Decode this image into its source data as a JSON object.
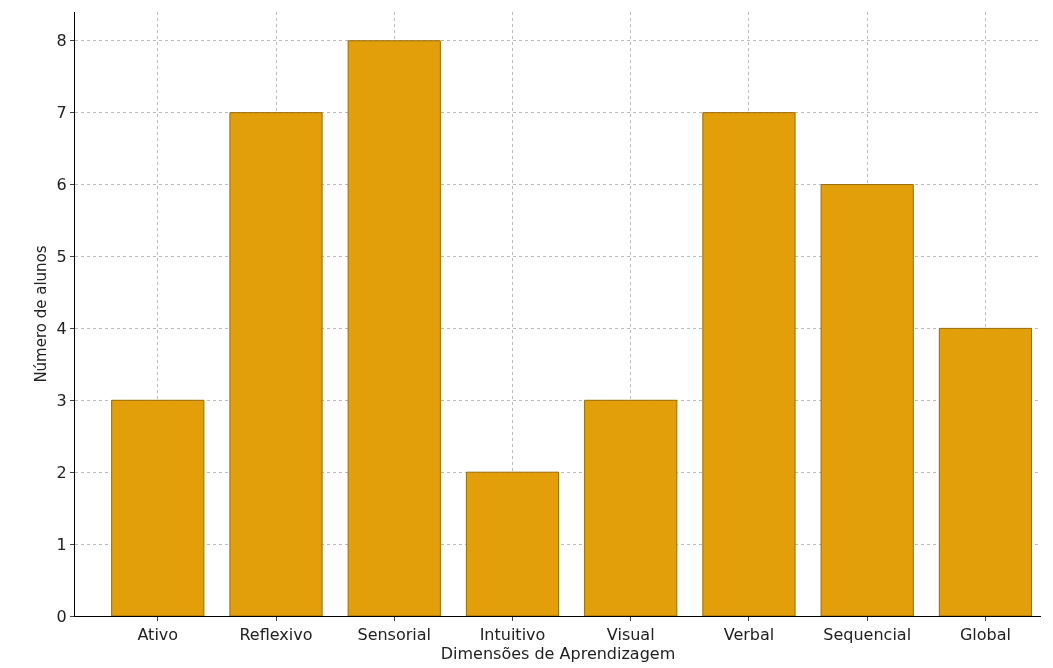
{
  "chart_data": {
    "type": "bar",
    "xlabel": "Dimensões de Aprendizagem",
    "ylabel": "Número de alunos",
    "categories": [
      "Ativo",
      "Reflexivo",
      "Sensorial",
      "Intuitivo",
      "Visual",
      "Verbal",
      "Sequencial",
      "Global"
    ],
    "values": [
      3,
      7,
      8,
      2,
      3,
      7,
      6,
      4
    ],
    "color": "#e39f0a",
    "ylim": [
      0,
      8.4
    ],
    "yticks": [
      0,
      1,
      2,
      3,
      4,
      5,
      6,
      7,
      8
    ],
    "grid": true
  }
}
